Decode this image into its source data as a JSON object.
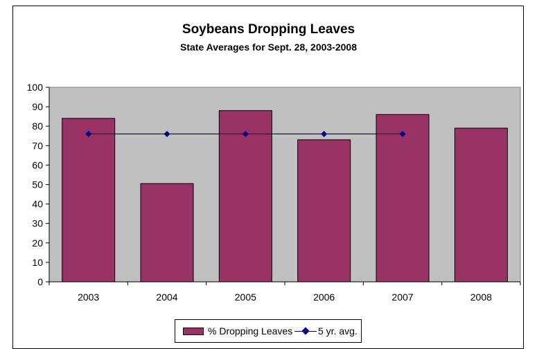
{
  "chart_data": {
    "type": "bar",
    "title": "Soybeans Dropping Leaves",
    "subtitle": "State Averages for Sept. 28, 2003-2008",
    "categories": [
      "2003",
      "2004",
      "2005",
      "2006",
      "2007",
      "2008"
    ],
    "series": [
      {
        "name": "% Dropping Leaves",
        "type": "bar",
        "color": "#993366",
        "values": [
          84,
          50.5,
          88,
          73,
          86,
          79
        ]
      },
      {
        "name": "5 yr. avg.",
        "type": "line",
        "color": "#000080",
        "values": [
          76,
          76,
          76,
          76,
          76,
          null
        ]
      }
    ],
    "ylim": [
      0,
      100
    ],
    "yticks": [
      0,
      10,
      20,
      30,
      40,
      50,
      60,
      70,
      80,
      90,
      100
    ],
    "plot_background": "#c0c0c0",
    "grid": false,
    "legend_position": "bottom"
  }
}
